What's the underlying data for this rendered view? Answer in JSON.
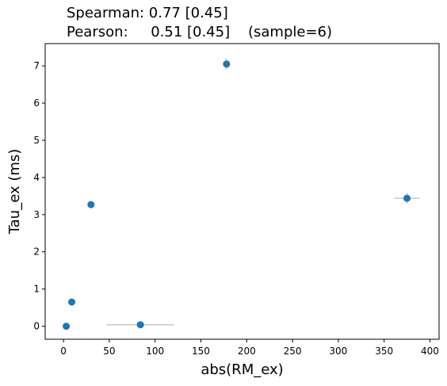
{
  "chart_data": {
    "type": "scatter",
    "title_lines": [
      "Spearman: 0.77 [0.45]",
      "Pearson:     0.51 [0.45]    (sample=6)"
    ],
    "xlabel": "abs(RM_ex)",
    "ylabel": "Tau_ex (ms)",
    "xlim": [
      -20,
      410
    ],
    "ylim": [
      -0.35,
      7.6
    ],
    "xticks": [
      0,
      50,
      100,
      150,
      200,
      250,
      300,
      350,
      400
    ],
    "yticks": [
      0,
      1,
      2,
      3,
      4,
      5,
      6,
      7
    ],
    "grid": false,
    "point_color": "#1f77b4",
    "errorbar_color": "#c8c8c8",
    "points": [
      {
        "x": 3,
        "y": 0.0,
        "xerr": 2,
        "yerr": 0.05
      },
      {
        "x": 9,
        "y": 0.65,
        "xerr": 1,
        "yerr": 0.05
      },
      {
        "x": 30,
        "y": 3.27,
        "xerr": 2,
        "yerr": 0.08
      },
      {
        "x": 84,
        "y": 0.04,
        "xerr": 37,
        "yerr": 0.03
      },
      {
        "x": 178,
        "y": 7.05,
        "xerr": 4,
        "yerr": 0.15
      },
      {
        "x": 375,
        "y": 3.44,
        "xerr": 14,
        "yerr": 0.15
      }
    ]
  }
}
